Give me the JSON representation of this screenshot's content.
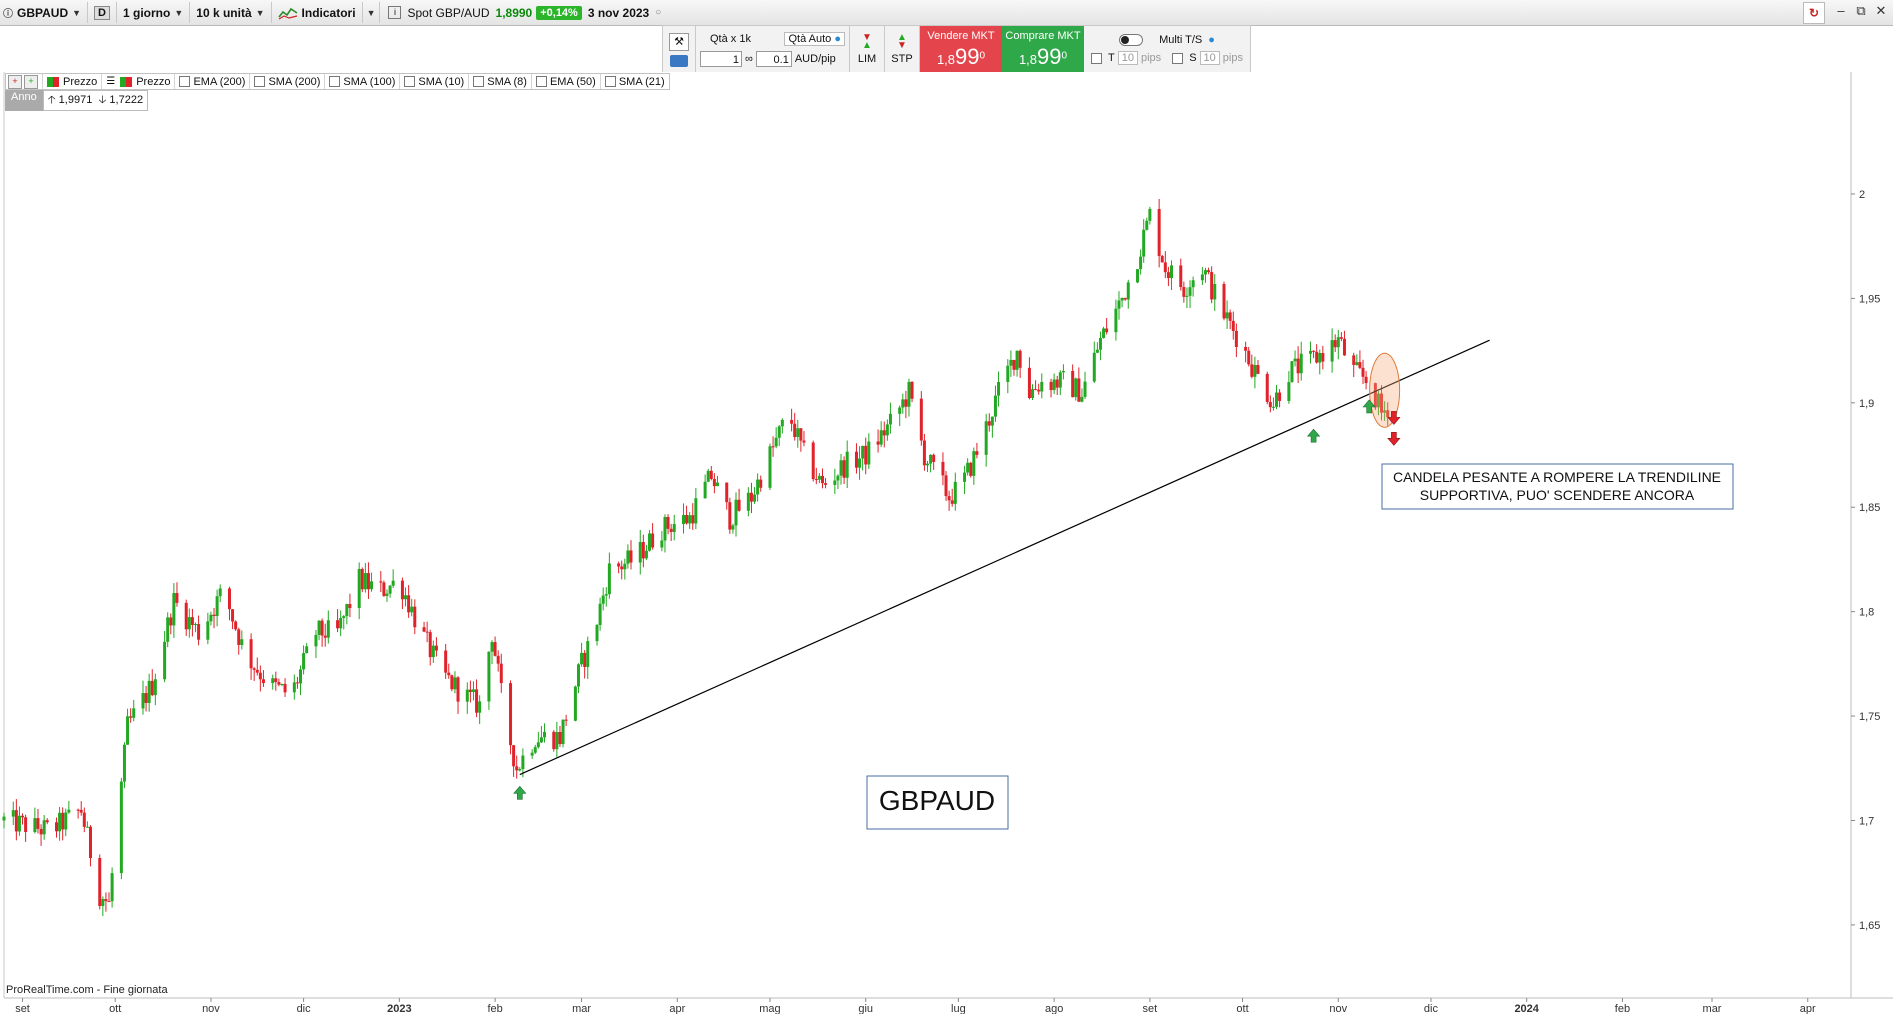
{
  "toolbar": {
    "symbol": "GBPAUD",
    "period_badge": "D",
    "timeframe": "1 giorno",
    "units": "10 k unità",
    "indicators": "Indicatori",
    "spot_label": "Spot GBP/AUD",
    "spot_price": "1,8990",
    "spot_change": "+0,14%",
    "date": "3 nov 2023"
  },
  "trade": {
    "qta_label": "Qtà  x 1k",
    "qta_auto": "Qtà Auto",
    "qta_value": "1",
    "pip_value": "0.1",
    "pip_unit": "AUD/pip",
    "lim": "LIM",
    "stp": "STP",
    "sell_title": "Vendere MKT",
    "sell_small": "1,8",
    "sell_big": "99",
    "sell_sup": "0",
    "buy_title": "Comprare MKT",
    "buy_small": "1,8",
    "buy_big": "99",
    "buy_sup": "0",
    "multi": "Multi T/S",
    "t_label": "T",
    "s_label": "S",
    "t_value": "10",
    "s_value": "10",
    "pips": "pips"
  },
  "legend": {
    "items": [
      "Prezzo",
      "Prezzo",
      "EMA (200)",
      "SMA (200)",
      "SMA (100)",
      "SMA (10)",
      "SMA (8)",
      "EMA (50)",
      "SMA (21)"
    ]
  },
  "anno": {
    "label": "Anno",
    "high": "1,9971",
    "low": "1,7222"
  },
  "brand": "ProRealTime.com - Fine giornata",
  "colors": {
    "up": "#22a822",
    "down": "#e0222a",
    "trendline": "#000000",
    "sell": "#e4454d",
    "buy": "#2fa84a",
    "annotation_border": "#4a6fa5"
  },
  "chart_data": {
    "type": "candlestick",
    "instrument": "GBPAUD",
    "timeframe": "daily",
    "ylim": [
      1.615,
      2.045
    ],
    "y_ticks": [
      "2",
      "1,95",
      "1,9",
      "1,85",
      "1,8",
      "1,75",
      "1,7",
      "1,65"
    ],
    "y_tick_values": [
      2.0,
      1.95,
      1.9,
      1.85,
      1.8,
      1.75,
      1.7,
      1.65
    ],
    "x_ticks": [
      "set",
      "ott",
      "nov",
      "dic",
      "2023",
      "feb",
      "mar",
      "apr",
      "mag",
      "giu",
      "lug",
      "ago",
      "set",
      "ott",
      "nov",
      "dic",
      "2024",
      "feb",
      "mar",
      "apr"
    ],
    "x_tick_dates": [
      "2022-09-01",
      "2022-10-01",
      "2022-11-01",
      "2022-12-01",
      "2023-01-01",
      "2023-02-01",
      "2023-03-01",
      "2023-04-01",
      "2023-05-01",
      "2023-06-01",
      "2023-07-01",
      "2023-08-01",
      "2023-09-01",
      "2023-10-01",
      "2023-11-01",
      "2023-12-01",
      "2024-01-01",
      "2024-02-01",
      "2024-03-01",
      "2024-04-01"
    ],
    "x_range": [
      "2022-08-26",
      "2024-04-15"
    ],
    "price_path": [
      {
        "date": "2022-08-26",
        "close": 1.7
      },
      {
        "date": "2022-09-10",
        "close": 1.695
      },
      {
        "date": "2022-09-20",
        "close": 1.705
      },
      {
        "date": "2022-09-26",
        "close": 1.665
      },
      {
        "date": "2022-09-29",
        "close": 1.66
      },
      {
        "date": "2022-10-05",
        "close": 1.745
      },
      {
        "date": "2022-10-13",
        "close": 1.765
      },
      {
        "date": "2022-10-20",
        "close": 1.805
      },
      {
        "date": "2022-10-28",
        "close": 1.79
      },
      {
        "date": "2022-11-05",
        "close": 1.81
      },
      {
        "date": "2022-11-12",
        "close": 1.78
      },
      {
        "date": "2022-11-20",
        "close": 1.765
      },
      {
        "date": "2022-11-27",
        "close": 1.76
      },
      {
        "date": "2022-12-05",
        "close": 1.79
      },
      {
        "date": "2022-12-12",
        "close": 1.79
      },
      {
        "date": "2022-12-19",
        "close": 1.815
      },
      {
        "date": "2022-12-26",
        "close": 1.81
      },
      {
        "date": "2023-01-01",
        "close": 1.815
      },
      {
        "date": "2023-01-08",
        "close": 1.79
      },
      {
        "date": "2023-01-15",
        "close": 1.77
      },
      {
        "date": "2023-01-22",
        "close": 1.76
      },
      {
        "date": "2023-01-27",
        "close": 1.755
      },
      {
        "date": "2023-01-31",
        "close": 1.79
      },
      {
        "date": "2023-02-04",
        "close": 1.75
      },
      {
        "date": "2023-02-08",
        "close": 1.725
      },
      {
        "date": "2023-02-14",
        "close": 1.74
      },
      {
        "date": "2023-02-22",
        "close": 1.74
      },
      {
        "date": "2023-03-01",
        "close": 1.775
      },
      {
        "date": "2023-03-05",
        "close": 1.79
      },
      {
        "date": "2023-03-10",
        "close": 1.82
      },
      {
        "date": "2023-03-18",
        "close": 1.825
      },
      {
        "date": "2023-03-27",
        "close": 1.84
      },
      {
        "date": "2023-04-05",
        "close": 1.845
      },
      {
        "date": "2023-04-12",
        "close": 1.865
      },
      {
        "date": "2023-04-18",
        "close": 1.845
      },
      {
        "date": "2023-04-25",
        "close": 1.855
      },
      {
        "date": "2023-05-01",
        "close": 1.875
      },
      {
        "date": "2023-05-07",
        "close": 1.895
      },
      {
        "date": "2023-05-12",
        "close": 1.875
      },
      {
        "date": "2023-05-18",
        "close": 1.86
      },
      {
        "date": "2023-05-25",
        "close": 1.87
      },
      {
        "date": "2023-06-01",
        "close": 1.875
      },
      {
        "date": "2023-06-09",
        "close": 1.89
      },
      {
        "date": "2023-06-15",
        "close": 1.905
      },
      {
        "date": "2023-06-20",
        "close": 1.875
      },
      {
        "date": "2023-06-28",
        "close": 1.855
      },
      {
        "date": "2023-07-02",
        "close": 1.86
      },
      {
        "date": "2023-07-08",
        "close": 1.88
      },
      {
        "date": "2023-07-14",
        "close": 1.905
      },
      {
        "date": "2023-07-20",
        "close": 1.925
      },
      {
        "date": "2023-07-24",
        "close": 1.905
      },
      {
        "date": "2023-07-28",
        "close": 1.91
      },
      {
        "date": "2023-08-04",
        "close": 1.91
      },
      {
        "date": "2023-08-10",
        "close": 1.905
      },
      {
        "date": "2023-08-16",
        "close": 1.93
      },
      {
        "date": "2023-08-23",
        "close": 1.95
      },
      {
        "date": "2023-08-28",
        "close": 1.97
      },
      {
        "date": "2023-09-01",
        "close": 1.99
      },
      {
        "date": "2023-09-06",
        "close": 1.965
      },
      {
        "date": "2023-09-12",
        "close": 1.955
      },
      {
        "date": "2023-09-18",
        "close": 1.965
      },
      {
        "date": "2023-09-24",
        "close": 1.945
      },
      {
        "date": "2023-09-30",
        "close": 1.93
      },
      {
        "date": "2023-10-05",
        "close": 1.915
      },
      {
        "date": "2023-10-11",
        "close": 1.9
      },
      {
        "date": "2023-10-16",
        "close": 1.915
      },
      {
        "date": "2023-10-23",
        "close": 1.92
      },
      {
        "date": "2023-10-28",
        "close": 1.925
      },
      {
        "date": "2023-11-01",
        "close": 1.93
      },
      {
        "date": "2023-11-06",
        "close": 1.915
      },
      {
        "date": "2023-11-11",
        "close": 1.91
      },
      {
        "date": "2023-11-15",
        "close": 1.895
      },
      {
        "date": "2023-11-18",
        "close": 1.9
      }
    ],
    "trendline": [
      {
        "date": "2023-02-09",
        "value": 1.722
      },
      {
        "date": "2023-12-20",
        "value": 1.93
      }
    ],
    "signals": [
      {
        "type": "up",
        "date": "2023-02-09",
        "value": 1.713
      },
      {
        "type": "up",
        "date": "2023-10-24",
        "value": 1.884
      },
      {
        "type": "up",
        "date": "2023-11-11",
        "value": 1.898
      },
      {
        "type": "down",
        "date": "2023-11-19",
        "value": 1.893
      },
      {
        "type": "down",
        "date": "2023-11-19",
        "value": 1.883
      }
    ],
    "highlight": {
      "date": "2023-11-16",
      "value": 1.906
    },
    "annotations": {
      "note_line1": "CANDELA PESANTE A ROMPERE LA TRENDILINE",
      "note_line2": "SUPPORTIVA, PUO' SCENDERE ANCORA",
      "title": "GBPAUD"
    }
  }
}
